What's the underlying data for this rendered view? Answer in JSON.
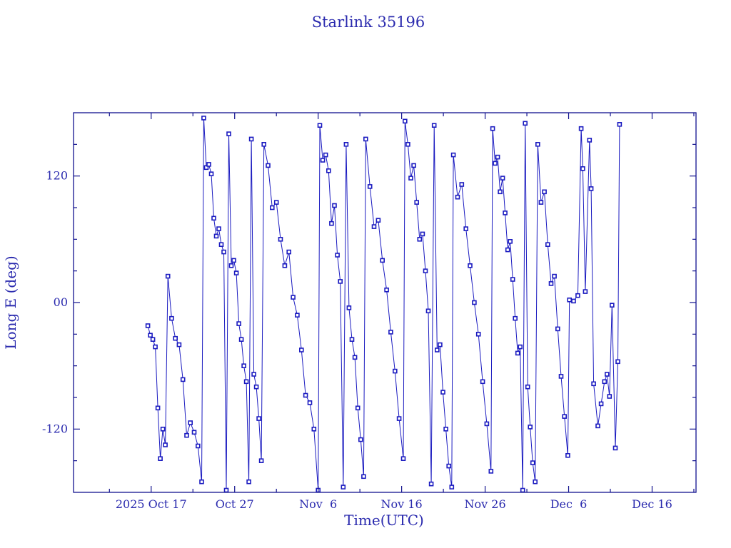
{
  "window": {
    "title": "Starlink 35196"
  },
  "colors": {
    "background": "#ffffff",
    "line": "#1b1bc0",
    "marker": "#1b1bc0",
    "marker_fill": "#ffffff",
    "axis": "#12128e",
    "text": "#2a2aae"
  },
  "chart_data": {
    "type": "line",
    "title": "Starlink 35196",
    "xlabel": "Time(UTC)",
    "ylabel": "Long E (deg)",
    "legend": null,
    "grid": false,
    "marker": "open-square",
    "ylim": [
      -180,
      180
    ],
    "x_domain_days": [
      0,
      74.56
    ],
    "x_major_ticks": [
      {
        "d": 9.3,
        "label": "2025 Oct 17"
      },
      {
        "d": 19.3,
        "label": "Oct 27"
      },
      {
        "d": 29.3,
        "label": "Nov  6"
      },
      {
        "d": 39.3,
        "label": "Nov 16"
      },
      {
        "d": 49.3,
        "label": "Nov 26"
      },
      {
        "d": 59.3,
        "label": "Dec  6"
      },
      {
        "d": 69.3,
        "label": "Dec 16"
      }
    ],
    "x_minor_ticks": [
      4.3,
      14.3,
      24.3,
      34.3,
      44.3,
      54.3,
      64.3,
      74.3
    ],
    "y_major_ticks": [
      {
        "v": 120,
        "label": "120"
      },
      {
        "v": 0,
        "label": "00"
      },
      {
        "v": -120,
        "label": "-120"
      }
    ],
    "y_minor_ticks": [
      150,
      90,
      60,
      30,
      -30,
      -60,
      -90,
      -150
    ],
    "points": [
      [
        8.9,
        -22
      ],
      [
        9.2,
        -31
      ],
      [
        9.5,
        -35
      ],
      [
        9.8,
        -42
      ],
      [
        10.1,
        -100
      ],
      [
        10.4,
        -148
      ],
      [
        10.7,
        -120
      ],
      [
        11.0,
        -135
      ],
      [
        11.3,
        25
      ],
      [
        11.75,
        -15
      ],
      [
        12.2,
        -34
      ],
      [
        12.65,
        -40
      ],
      [
        13.1,
        -73
      ],
      [
        13.55,
        -126
      ],
      [
        14.0,
        -114
      ],
      [
        14.45,
        -123
      ],
      [
        14.9,
        -136
      ],
      [
        15.35,
        -170
      ],
      [
        15.6,
        175
      ],
      [
        15.9,
        128
      ],
      [
        16.2,
        131
      ],
      [
        16.5,
        122
      ],
      [
        16.8,
        80
      ],
      [
        17.1,
        63
      ],
      [
        17.4,
        70
      ],
      [
        17.7,
        55
      ],
      [
        18.0,
        48
      ],
      [
        18.3,
        -178
      ],
      [
        18.6,
        160
      ],
      [
        18.9,
        35
      ],
      [
        19.2,
        40
      ],
      [
        19.5,
        28
      ],
      [
        19.8,
        -20
      ],
      [
        20.1,
        -35
      ],
      [
        20.4,
        -60
      ],
      [
        20.7,
        -75
      ],
      [
        21.0,
        -170
      ],
      [
        21.3,
        155
      ],
      [
        21.6,
        -68
      ],
      [
        21.9,
        -80
      ],
      [
        22.2,
        -110
      ],
      [
        22.5,
        -150
      ],
      [
        22.8,
        150
      ],
      [
        23.3,
        130
      ],
      [
        23.8,
        90
      ],
      [
        24.3,
        95
      ],
      [
        24.8,
        60
      ],
      [
        25.3,
        35
      ],
      [
        25.8,
        48
      ],
      [
        26.3,
        5
      ],
      [
        26.8,
        -12
      ],
      [
        27.3,
        -45
      ],
      [
        27.8,
        -88
      ],
      [
        28.3,
        -95
      ],
      [
        28.8,
        -120
      ],
      [
        29.3,
        -178
      ],
      [
        29.5,
        168
      ],
      [
        29.85,
        135
      ],
      [
        30.2,
        140
      ],
      [
        30.55,
        125
      ],
      [
        30.9,
        75
      ],
      [
        31.25,
        92
      ],
      [
        31.6,
        45
      ],
      [
        31.95,
        20
      ],
      [
        32.3,
        -175
      ],
      [
        32.65,
        150
      ],
      [
        33.0,
        -5
      ],
      [
        33.35,
        -35
      ],
      [
        33.7,
        -52
      ],
      [
        34.05,
        -100
      ],
      [
        34.4,
        -130
      ],
      [
        34.75,
        -165
      ],
      [
        35.0,
        155
      ],
      [
        35.5,
        110
      ],
      [
        36.0,
        72
      ],
      [
        36.5,
        78
      ],
      [
        37.0,
        40
      ],
      [
        37.5,
        12
      ],
      [
        38.0,
        -28
      ],
      [
        38.5,
        -65
      ],
      [
        39.0,
        -110
      ],
      [
        39.5,
        -148
      ],
      [
        39.7,
        172
      ],
      [
        40.05,
        150
      ],
      [
        40.4,
        118
      ],
      [
        40.75,
        130
      ],
      [
        41.1,
        95
      ],
      [
        41.45,
        60
      ],
      [
        41.8,
        65
      ],
      [
        42.15,
        30
      ],
      [
        42.5,
        -8
      ],
      [
        42.85,
        -172
      ],
      [
        43.2,
        168
      ],
      [
        43.55,
        -45
      ],
      [
        43.9,
        -40
      ],
      [
        44.25,
        -85
      ],
      [
        44.6,
        -120
      ],
      [
        44.95,
        -155
      ],
      [
        45.3,
        -175
      ],
      [
        45.5,
        140
      ],
      [
        46.0,
        100
      ],
      [
        46.5,
        112
      ],
      [
        47.0,
        70
      ],
      [
        47.5,
        35
      ],
      [
        48.0,
        0
      ],
      [
        48.5,
        -30
      ],
      [
        49.0,
        -75
      ],
      [
        49.5,
        -115
      ],
      [
        50.0,
        -160
      ],
      [
        50.2,
        165
      ],
      [
        50.5,
        132
      ],
      [
        50.8,
        138
      ],
      [
        51.1,
        105
      ],
      [
        51.4,
        118
      ],
      [
        51.7,
        85
      ],
      [
        52.0,
        50
      ],
      [
        52.3,
        58
      ],
      [
        52.6,
        22
      ],
      [
        52.9,
        -15
      ],
      [
        53.2,
        -48
      ],
      [
        53.5,
        -42
      ],
      [
        53.8,
        -178
      ],
      [
        54.1,
        170
      ],
      [
        54.4,
        -80
      ],
      [
        54.7,
        -118
      ],
      [
        55.0,
        -152
      ],
      [
        55.3,
        -170
      ],
      [
        55.6,
        150
      ],
      [
        56.0,
        95
      ],
      [
        56.4,
        105
      ],
      [
        56.8,
        55
      ],
      [
        57.2,
        18
      ],
      [
        57.6,
        25
      ],
      [
        58.0,
        -25
      ],
      [
        58.4,
        -70
      ],
      [
        58.8,
        -108
      ],
      [
        59.2,
        -145
      ],
      [
        59.4,
        2.5
      ],
      [
        59.9,
        1.4
      ],
      [
        60.4,
        6.6
      ],
      [
        60.8,
        165
      ],
      [
        61.0,
        127
      ],
      [
        61.3,
        10.4
      ],
      [
        61.8,
        154
      ],
      [
        62.0,
        108
      ],
      [
        62.3,
        -77
      ],
      [
        62.8,
        -117
      ],
      [
        63.2,
        -96
      ],
      [
        63.6,
        -75
      ],
      [
        63.9,
        -68
      ],
      [
        64.2,
        -89
      ],
      [
        64.5,
        -2.5
      ],
      [
        64.9,
        -138
      ],
      [
        65.2,
        -56
      ],
      [
        65.4,
        169
      ]
    ]
  }
}
